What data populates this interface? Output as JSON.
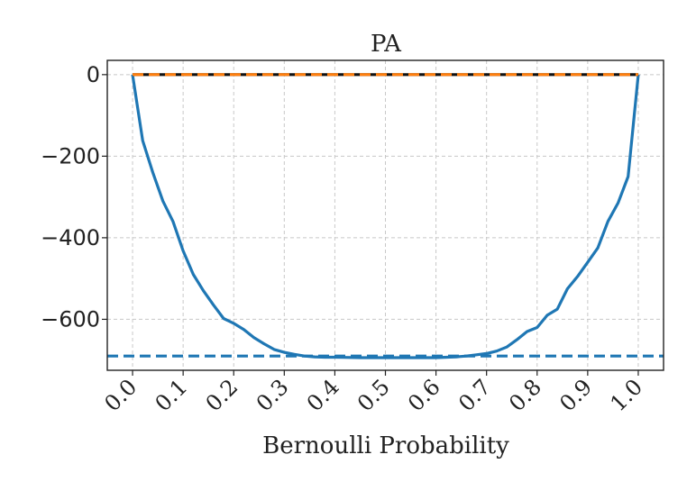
{
  "chart_data": {
    "type": "line",
    "title": "PA",
    "xlabel": "Bernoulli Probability",
    "ylabel": "",
    "xlim": [
      -0.05,
      1.05
    ],
    "ylim": [
      -725,
      35
    ],
    "xticks": [
      0.0,
      0.1,
      0.2,
      0.3,
      0.4,
      0.5,
      0.6,
      0.7,
      0.8,
      0.9,
      1.0
    ],
    "xtick_labels": [
      "0.0",
      "0.1",
      "0.2",
      "0.3",
      "0.4",
      "0.5",
      "0.6",
      "0.7",
      "0.8",
      "0.9",
      "1.0"
    ],
    "yticks": [
      0,
      -200,
      -400,
      -600
    ],
    "ytick_labels": [
      "0",
      "−200",
      "−400",
      "−600"
    ],
    "grid": true,
    "series": [
      {
        "color": "#1f77b4",
        "style": "solid",
        "x": [
          0.0,
          0.02,
          0.04,
          0.06,
          0.08,
          0.1,
          0.12,
          0.14,
          0.16,
          0.18,
          0.2,
          0.22,
          0.24,
          0.26,
          0.28,
          0.3,
          0.32,
          0.34,
          0.36,
          0.38,
          0.4,
          0.45,
          0.5,
          0.55,
          0.6,
          0.64,
          0.66,
          0.68,
          0.7,
          0.72,
          0.74,
          0.76,
          0.78,
          0.8,
          0.82,
          0.84,
          0.86,
          0.88,
          0.9,
          0.92,
          0.94,
          0.96,
          0.98,
          1.0
        ],
        "y": [
          0,
          -162,
          -240,
          -310,
          -360,
          -432,
          -490,
          -530,
          -565,
          -598,
          -610,
          -625,
          -645,
          -660,
          -674,
          -681,
          -686,
          -690,
          -692,
          -693,
          -693,
          -694,
          -694,
          -694,
          -694,
          -692,
          -690,
          -687,
          -684,
          -678,
          -668,
          -650,
          -630,
          -620,
          -590,
          -575,
          -525,
          -495,
          -460,
          -425,
          -360,
          -315,
          -250,
          0
        ]
      },
      {
        "color": "#1f77b4",
        "style": "dashed",
        "x": [
          -0.05,
          1.05
        ],
        "y": [
          -690,
          -690
        ]
      },
      {
        "color": "#111111",
        "style": "solid",
        "x": [
          0.0,
          1.0
        ],
        "y": [
          0,
          0
        ]
      },
      {
        "color": "#ff7f0e",
        "style": "dashed",
        "x": [
          0.0,
          1.0
        ],
        "y": [
          0,
          0
        ]
      }
    ]
  }
}
